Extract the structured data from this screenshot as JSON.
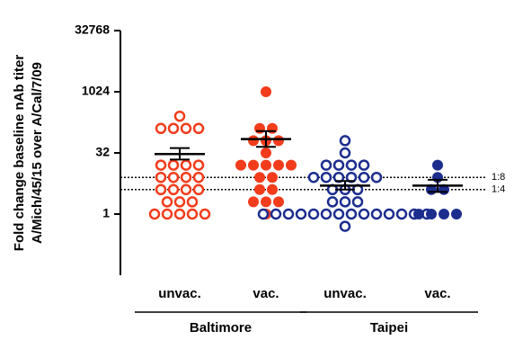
{
  "chart_data": {
    "type": "scatter",
    "y_label_lines": [
      "Fold change baseline nAb titer",
      "A/Mich/45/15 over A/Cal/7/09"
    ],
    "log_scale": true,
    "log_base": 2,
    "ylim": [
      0.03125,
      32768
    ],
    "yticks": [
      1,
      32,
      1024,
      32768
    ],
    "categories": [
      "unvac.",
      "vac.",
      "unvac.",
      "vac."
    ],
    "groups": [
      {
        "name": "Baltimore",
        "categories": [
          0,
          1
        ]
      },
      {
        "name": "Taipei",
        "categories": [
          2,
          3
        ]
      }
    ],
    "reference_lines": [
      {
        "value": 8,
        "label": "1:8"
      },
      {
        "value": 4,
        "label": "1:4"
      }
    ],
    "series": [
      {
        "color": "#f23c1c",
        "filled": false,
        "values": [
          256,
          128,
          128,
          128,
          128,
          16,
          16,
          16,
          16,
          8,
          8,
          8,
          8,
          4,
          4,
          4,
          4,
          2,
          2,
          2,
          1,
          1,
          1,
          1,
          1
        ],
        "mean": 30,
        "err_low": 22,
        "err_high": 42
      },
      {
        "color": "#f23c1c",
        "filled": true,
        "values": [
          1024,
          128,
          128,
          64,
          64,
          64,
          32,
          16,
          16,
          16,
          16,
          16,
          8,
          8,
          4,
          4,
          2,
          2,
          2,
          1
        ],
        "mean": 70,
        "err_low": 45,
        "err_high": 110
      },
      {
        "color": "#1c2d8e",
        "filled": false,
        "values": [
          64,
          32,
          16,
          16,
          16,
          16,
          8,
          8,
          8,
          8,
          8,
          8,
          4,
          4,
          4,
          2,
          2,
          2,
          1,
          1,
          1,
          1,
          1,
          1,
          1,
          1,
          1,
          1,
          1,
          1,
          1,
          1,
          0.5
        ],
        "mean": 5,
        "err_low": 4,
        "err_high": 6.5
      },
      {
        "color": "#1c2d8e",
        "filled": true,
        "values": [
          16,
          8,
          4,
          4,
          1,
          1,
          1,
          1
        ],
        "mean": 5,
        "err_low": 3.5,
        "err_high": 7
      }
    ]
  }
}
